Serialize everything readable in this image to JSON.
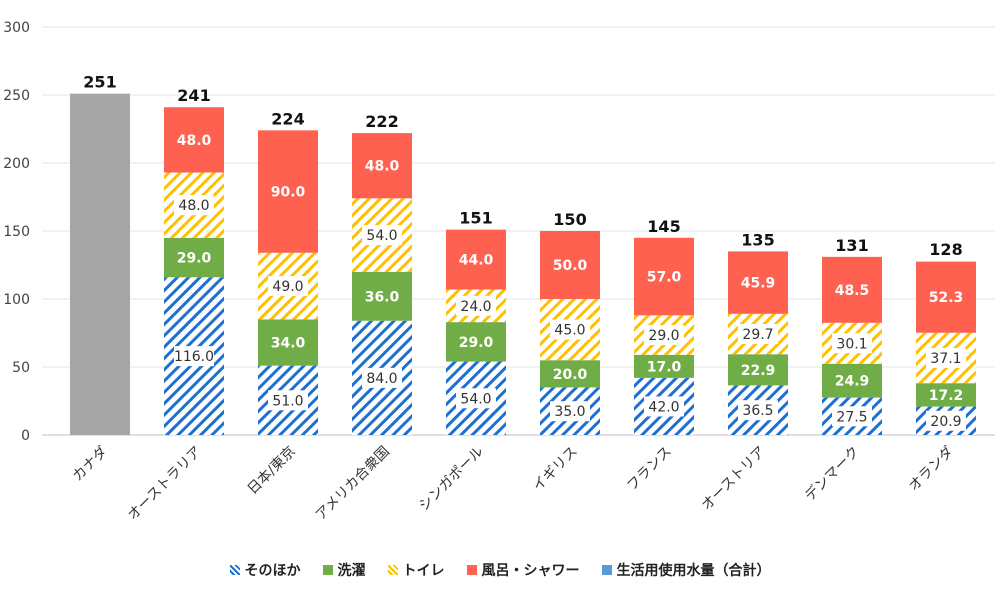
{
  "chart_data": {
    "type": "bar",
    "stacked": true,
    "categories": [
      "カナダ",
      "オーストラリア",
      "日本/東京",
      "アメリカ合衆国",
      "シンガポール",
      "イギリス",
      "フランス",
      "オーストリア",
      "デンマーク",
      "オランダ"
    ],
    "series": [
      {
        "name": "そのほか",
        "values": [
          null,
          116.0,
          51.0,
          84.0,
          54.0,
          35.0,
          42.0,
          36.5,
          27.5,
          20.9
        ],
        "color": "#1f6fd1",
        "pattern": "diagonal-stripes"
      },
      {
        "name": "洗濯",
        "values": [
          null,
          29.0,
          34.0,
          36.0,
          29.0,
          20.0,
          17.0,
          22.9,
          24.9,
          17.2
        ],
        "color": "#70ad47",
        "pattern": "solid"
      },
      {
        "name": "トイレ",
        "values": [
          null,
          48.0,
          49.0,
          54.0,
          24.0,
          45.0,
          29.0,
          29.7,
          30.1,
          37.1
        ],
        "color": "#ffc000",
        "pattern": "diagonal-stripes"
      },
      {
        "name": "風呂・シャワー",
        "values": [
          null,
          48.0,
          90.0,
          48.0,
          44.0,
          50.0,
          57.0,
          45.9,
          48.5,
          52.3
        ],
        "color": "#ff6150",
        "pattern": "solid"
      },
      {
        "name": "生活用使用水量（合計）",
        "values": [
          251,
          null,
          null,
          null,
          null,
          null,
          null,
          null,
          null,
          null
        ],
        "color": "#5b9bd5",
        "pattern": "solid"
      }
    ],
    "totals": [
      "251",
      "241",
      "224",
      "222",
      "151",
      "150",
      "145",
      "135",
      "131",
      "128"
    ],
    "total_bar_color": "#a6a6a6",
    "ylim": [
      0,
      300
    ],
    "yticks": [
      0,
      50,
      100,
      150,
      200,
      250,
      300
    ],
    "grid": true,
    "legend_position": "bottom",
    "title": "",
    "xlabel": "",
    "ylabel": ""
  }
}
